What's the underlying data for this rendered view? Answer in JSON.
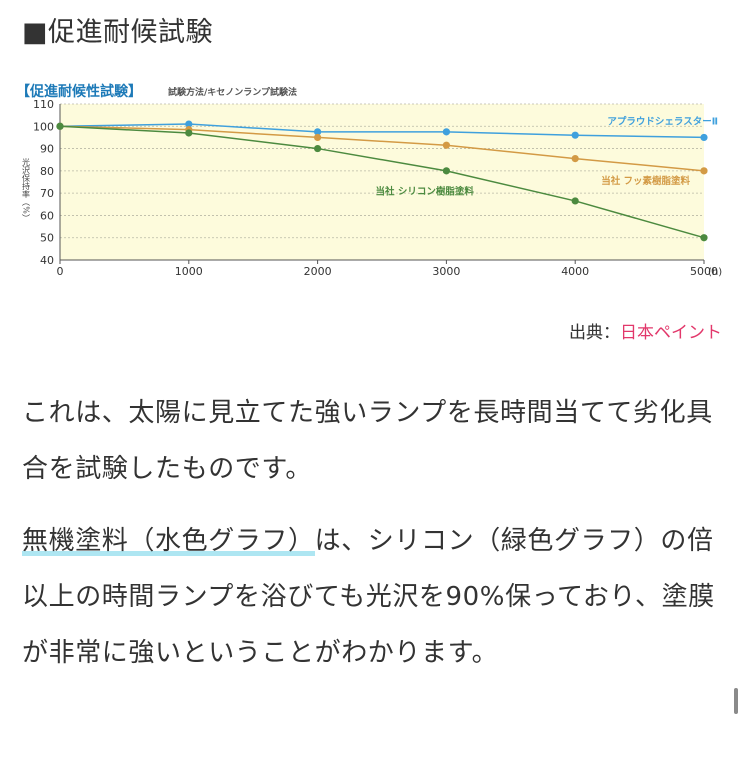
{
  "page": {
    "heading": "■促進耐候試験",
    "source_label": "出典：",
    "source_link": "日本ペイント",
    "paragraph1": "これは、太陽に見立てた強いランプを長時間当てて劣化具合を試験したものです。",
    "paragraph2_marked": "無機塗料（水色グラフ）",
    "paragraph2_rest": "は、シリコン（緑色グラフ）の倍以上の時間ランプを浴びても光沢を90%保っており、塗膜が非常に強いということがわかります。"
  },
  "colors": {
    "blue": "#3fa0dd",
    "orange": "#d39a45",
    "green": "#4c8a3f",
    "title_blue": "#1d7ab8",
    "plot_bg": "#fdfbdc",
    "link": "#e2386b"
  },
  "chart_data": {
    "type": "line",
    "title": "【促進耐候性試験】",
    "subtitle": "試験方法/キセノンランプ試験法",
    "ylabel": "光沢保持率（%）",
    "xlabel": "",
    "x_unit": "(h)",
    "x": [
      0,
      1000,
      2000,
      3000,
      4000,
      5000
    ],
    "x_ticks": [
      "0",
      "1000",
      "2000",
      "3000",
      "4000",
      "5000"
    ],
    "y_ticks": [
      "40",
      "50",
      "60",
      "70",
      "80",
      "90",
      "100",
      "110"
    ],
    "ylim": [
      40,
      110
    ],
    "xlim": [
      0,
      5000
    ],
    "grid": true,
    "series": [
      {
        "name": "アプラウドシェラスターⅡ",
        "color_key": "blue",
        "values": [
          100,
          101,
          97.5,
          97.5,
          96,
          95
        ]
      },
      {
        "name": "当社 フッ素樹脂塗料",
        "color_key": "orange",
        "values": [
          100,
          98.5,
          95,
          91.5,
          85.5,
          80
        ]
      },
      {
        "name": "当社 シリコン樹脂塗料",
        "color_key": "green",
        "values": [
          100,
          97,
          90,
          80,
          66.5,
          50
        ]
      }
    ]
  }
}
